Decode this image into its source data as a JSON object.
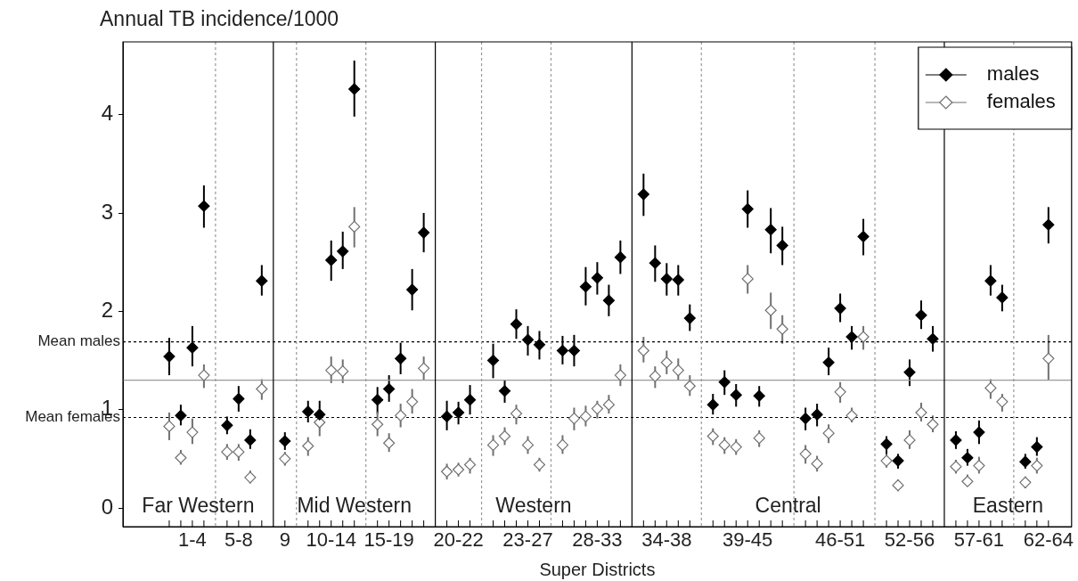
{
  "chart_data": {
    "type": "scatter",
    "ylabel": "Annual TB incidence/1000",
    "xlabel": "Super Districts",
    "marker": "diamond",
    "legend": "top right",
    "grid": "x",
    "categories": [
      null,
      null,
      null,
      null,
      null,
      null,
      "1-4",
      null,
      null,
      null,
      "5-8",
      null,
      null,
      null,
      "9",
      null,
      null,
      null,
      "10-14",
      null,
      null,
      null,
      null,
      "15-19",
      null,
      null,
      null,
      null,
      null,
      "20-22",
      null,
      null,
      null,
      null,
      null,
      "23-27",
      null,
      null,
      null,
      null,
      null,
      "28-33",
      null,
      null,
      null,
      null,
      null,
      "34-38",
      null,
      null,
      null,
      null,
      null,
      null,
      "39-45",
      null,
      null,
      null,
      null,
      null,
      null,
      null,
      "46-51",
      null,
      null,
      null,
      null,
      null,
      "52-56",
      null,
      null,
      null,
      null,
      null,
      "57-61",
      null,
      null,
      null,
      null,
      null,
      "62-64",
      null,
      null
    ],
    "ylim": [
      -0.19,
      4.74
    ],
    "yticks": [
      0,
      1,
      2,
      3,
      4
    ],
    "series": [
      {
        "name": "males",
        "color": "#000000",
        "values": [
          null,
          null,
          null,
          null,
          1.54,
          0.94,
          1.63,
          3.07,
          null,
          0.84,
          1.11,
          0.69,
          2.31,
          null,
          0.68,
          null,
          0.98,
          0.95,
          2.52,
          2.61,
          4.26,
          null,
          1.1,
          1.21,
          1.52,
          2.22,
          2.8,
          null,
          0.93,
          0.97,
          1.1,
          null,
          1.5,
          1.19,
          1.87,
          1.71,
          1.66,
          null,
          1.6,
          1.6,
          2.25,
          2.34,
          2.11,
          2.55,
          null,
          3.19,
          2.49,
          2.33,
          2.32,
          1.93,
          null,
          1.05,
          1.28,
          1.15,
          3.04,
          1.14,
          2.83,
          2.67,
          null,
          0.91,
          0.95,
          1.48,
          2.03,
          1.74,
          2.76,
          null,
          0.65,
          0.48,
          1.38,
          1.96,
          1.72,
          null,
          0.69,
          0.51,
          0.77,
          2.31,
          2.14,
          null,
          0.47,
          0.62,
          2.88,
          null,
          null
        ],
        "errors": [
          null,
          null,
          null,
          null,
          [
            1.35,
            1.73
          ],
          [
            0.84,
            1.05
          ],
          [
            1.44,
            1.85
          ],
          [
            2.85,
            3.28
          ],
          null,
          [
            0.75,
            0.93
          ],
          [
            0.98,
            1.24
          ],
          [
            0.6,
            0.8
          ],
          [
            2.16,
            2.47
          ],
          null,
          [
            0.59,
            0.77
          ],
          null,
          [
            0.87,
            1.09
          ],
          [
            0.88,
            1.09
          ],
          [
            2.31,
            2.72
          ],
          [
            2.43,
            2.81
          ],
          [
            3.98,
            4.55
          ],
          null,
          [
            0.96,
            1.23
          ],
          [
            1.08,
            1.35
          ],
          [
            1.36,
            1.68
          ],
          [
            2.01,
            2.43
          ],
          [
            2.6,
            3.0
          ],
          null,
          [
            0.79,
            1.09
          ],
          [
            0.85,
            1.08
          ],
          [
            0.95,
            1.25
          ],
          null,
          [
            1.32,
            1.67
          ],
          [
            1.07,
            1.3
          ],
          [
            1.72,
            2.02
          ],
          [
            1.55,
            1.85
          ],
          [
            1.51,
            1.8
          ],
          null,
          [
            1.46,
            1.75
          ],
          [
            1.44,
            1.76
          ],
          [
            2.06,
            2.45
          ],
          [
            2.17,
            2.5
          ],
          [
            1.95,
            2.27
          ],
          [
            2.38,
            2.72
          ],
          null,
          [
            2.97,
            3.4
          ],
          [
            2.3,
            2.67
          ],
          [
            2.16,
            2.49
          ],
          [
            2.16,
            2.47
          ],
          [
            1.8,
            2.07
          ],
          null,
          [
            0.95,
            1.16
          ],
          [
            1.15,
            1.4
          ],
          [
            1.03,
            1.26
          ],
          [
            2.85,
            3.23
          ],
          [
            1.03,
            1.24
          ],
          [
            2.59,
            3.05
          ],
          [
            2.47,
            2.86
          ],
          null,
          [
            0.79,
            1.02
          ],
          [
            0.83,
            1.06
          ],
          [
            1.35,
            1.63
          ],
          [
            1.89,
            2.18
          ],
          [
            1.61,
            1.85
          ],
          [
            2.57,
            2.94
          ],
          null,
          [
            0.51,
            0.73
          ],
          [
            0.4,
            0.55
          ],
          [
            1.24,
            1.51
          ],
          [
            1.82,
            2.11
          ],
          [
            1.59,
            1.85
          ],
          null,
          [
            0.6,
            0.78
          ],
          [
            0.43,
            0.6
          ],
          [
            0.65,
            0.89
          ],
          [
            2.16,
            2.47
          ],
          [
            2.0,
            2.27
          ],
          null,
          [
            0.4,
            0.55
          ],
          [
            0.53,
            0.72
          ],
          [
            2.69,
            3.06
          ],
          null,
          null
        ]
      },
      {
        "name": "females",
        "color": "#707070",
        "values": [
          null,
          null,
          null,
          null,
          0.83,
          0.51,
          0.77,
          1.35,
          null,
          0.57,
          0.57,
          0.31,
          1.21,
          null,
          0.5,
          null,
          0.63,
          0.87,
          1.4,
          1.39,
          2.86,
          null,
          0.85,
          0.66,
          0.94,
          1.08,
          1.42,
          null,
          0.37,
          0.39,
          0.44,
          null,
          0.64,
          0.73,
          0.96,
          0.64,
          0.44,
          null,
          0.64,
          0.91,
          0.93,
          1.01,
          1.05,
          1.35,
          null,
          1.6,
          1.34,
          1.48,
          1.4,
          1.24,
          null,
          0.73,
          0.64,
          0.62,
          2.33,
          0.71,
          2.01,
          1.82,
          null,
          0.55,
          0.45,
          0.76,
          1.18,
          0.94,
          1.74,
          null,
          0.48,
          0.23,
          0.69,
          0.97,
          0.85,
          null,
          0.42,
          0.27,
          0.43,
          1.22,
          1.08,
          null,
          0.26,
          0.43,
          1.52,
          null,
          null
        ],
        "errors": [
          null,
          null,
          null,
          null,
          [
            0.69,
            0.97
          ],
          [
            0.44,
            0.59
          ],
          [
            0.65,
            0.91
          ],
          [
            1.22,
            1.46
          ],
          null,
          [
            0.49,
            0.65
          ],
          [
            0.48,
            0.65
          ],
          [
            0.25,
            0.38
          ],
          [
            1.1,
            1.31
          ],
          null,
          [
            0.43,
            0.57
          ],
          null,
          [
            0.53,
            0.72
          ],
          [
            0.73,
            1.01
          ],
          [
            1.27,
            1.54
          ],
          [
            1.27,
            1.51
          ],
          [
            2.65,
            3.06
          ],
          null,
          [
            0.73,
            0.98
          ],
          [
            0.57,
            0.76
          ],
          [
            0.82,
            1.06
          ],
          [
            0.96,
            1.21
          ],
          [
            1.3,
            1.54
          ],
          null,
          [
            0.29,
            0.45
          ],
          [
            0.32,
            0.46
          ],
          [
            0.35,
            0.51
          ],
          null,
          [
            0.53,
            0.74
          ],
          [
            0.64,
            0.82
          ],
          [
            0.85,
            1.05
          ],
          [
            0.55,
            0.73
          ],
          [
            0.37,
            0.51
          ],
          null,
          [
            0.55,
            0.74
          ],
          [
            0.79,
            1.02
          ],
          [
            0.83,
            1.04
          ],
          [
            0.91,
            1.09
          ],
          [
            0.96,
            1.15
          ],
          [
            1.24,
            1.46
          ],
          null,
          [
            1.48,
            1.74
          ],
          [
            1.22,
            1.44
          ],
          [
            1.36,
            1.6
          ],
          [
            1.3,
            1.52
          ],
          [
            1.14,
            1.35
          ],
          null,
          [
            0.64,
            0.81
          ],
          [
            0.55,
            0.72
          ],
          [
            0.54,
            0.7
          ],
          [
            2.18,
            2.47
          ],
          [
            0.62,
            0.79
          ],
          [
            1.82,
            2.19
          ],
          [
            1.67,
            1.96
          ],
          null,
          [
            0.45,
            0.64
          ],
          [
            0.37,
            0.53
          ],
          [
            0.66,
            0.85
          ],
          [
            1.07,
            1.28
          ],
          [
            0.87,
            1.02
          ],
          [
            1.61,
            1.85
          ],
          null,
          [
            0.41,
            0.55
          ],
          [
            0.17,
            0.29
          ],
          [
            0.6,
            0.79
          ],
          [
            0.88,
            1.07
          ],
          [
            0.77,
            0.94
          ],
          null,
          [
            0.35,
            0.49
          ],
          [
            0.22,
            0.34
          ],
          [
            0.35,
            0.52
          ],
          [
            1.11,
            1.31
          ],
          [
            0.98,
            1.16
          ],
          null,
          [
            0.2,
            0.32
          ],
          [
            0.35,
            0.51
          ],
          [
            1.3,
            1.76
          ],
          null,
          null
        ]
      }
    ],
    "ref_lines": [
      {
        "axis": "y",
        "value": 1.69,
        "label": "Mean males",
        "line_style": "dotted",
        "color": "#000000"
      },
      {
        "axis": "y",
        "value": 1.3,
        "line_style": "solid",
        "color": "#999999"
      },
      {
        "axis": "y",
        "value": 0.92,
        "label": "Mean females",
        "line_style": "dotted",
        "color": "#000000"
      }
    ],
    "annotations": [
      "Far Western",
      "Mid Western",
      "Western",
      "Central",
      "Eastern"
    ]
  }
}
